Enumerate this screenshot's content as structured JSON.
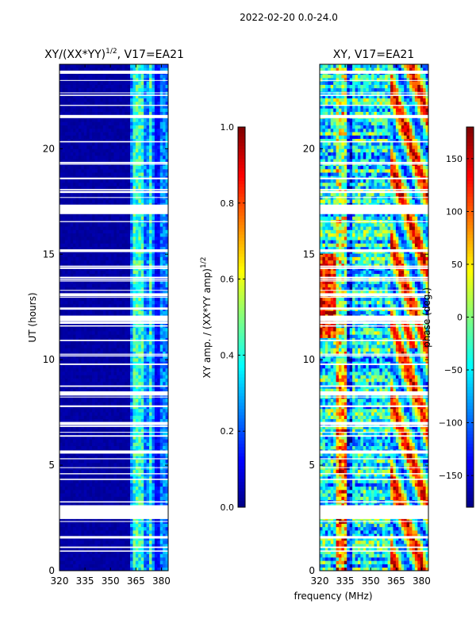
{
  "chart_data": {
    "type": "heatmap",
    "suptitle": "2022-02-20 0.0-24.0",
    "shared_xlabel": "frequency (MHz)",
    "panels": [
      {
        "id": "amp",
        "title": "XY/(XX*YY)",
        "title_sup": "1/2",
        "title_suffix": ", V17=EA21",
        "ylabel": "UT (hours)",
        "xlim": [
          320,
          384
        ],
        "ylim": [
          0,
          24
        ],
        "xticks": [
          320,
          335,
          350,
          365,
          380
        ],
        "yticks": [
          0,
          5,
          10,
          15,
          20
        ],
        "colorbar": {
          "label": "XY amp. / (XX*YY amp)",
          "label_sup": "1/2",
          "range": [
            0.0,
            1.0
          ],
          "ticks": [
            "0.0",
            "0.2",
            "0.4",
            "0.6",
            "0.8",
            "1.0"
          ],
          "tick_values": [
            0.0,
            0.2,
            0.4,
            0.6,
            0.8,
            1.0
          ]
        },
        "description_values": {
          "background_level": 0.03,
          "elevated_band_MHz": [
            362,
            384
          ],
          "elevated_band_level": 0.3,
          "brightest_channels_MHz": [
            364.5,
            368,
            373.5
          ]
        }
      },
      {
        "id": "phase",
        "title": "XY, V17=EA21",
        "ylabel": "phase (deg.)",
        "xlim": [
          320,
          384
        ],
        "ylim": [
          0,
          24
        ],
        "xticks": [
          320,
          335,
          350,
          365,
          380
        ],
        "yticks": [
          0,
          5,
          10,
          15,
          20
        ],
        "colorbar": {
          "label": "phase (deg.)",
          "range": [
            -180,
            180
          ],
          "ticks": [
            "150",
            "100",
            "50",
            "0",
            "−50",
            "−100",
            "−150"
          ],
          "tick_values": [
            150,
            100,
            50,
            0,
            -50,
            -100,
            -150
          ]
        }
      }
    ],
    "flagged_gaps_hours": [
      [
        2.45,
        3.1
      ],
      [
        16.9,
        17.35
      ],
      [
        8.3,
        8.5
      ],
      [
        11.85,
        12.05
      ],
      [
        13.0,
        13.15
      ],
      [
        5.55,
        5.7
      ],
      [
        6.9,
        7.05
      ],
      [
        23.55,
        23.7
      ],
      [
        21.45,
        21.6
      ],
      [
        15.1,
        15.2
      ],
      [
        17.9,
        18.0
      ],
      [
        1.55,
        1.62
      ],
      [
        0.9,
        0.96
      ],
      [
        9.75,
        9.82
      ],
      [
        14.3,
        14.38
      ],
      [
        18.55,
        18.63
      ],
      [
        20.3,
        20.36
      ],
      [
        22.5,
        22.56
      ],
      [
        4.3,
        4.36
      ],
      [
        6.35,
        6.42
      ]
    ],
    "thin_gap_count": 45
  },
  "colors": {
    "jet_dark_blue": "#00007f",
    "white": "#ffffff"
  }
}
